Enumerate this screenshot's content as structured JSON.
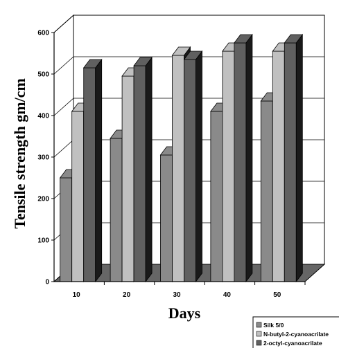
{
  "chart_data": {
    "type": "bar",
    "title": "",
    "xlabel": "Days",
    "ylabel": "Tensile strength gm/cm",
    "categories": [
      "10",
      "20",
      "30",
      "40",
      "50"
    ],
    "ylim": [
      0,
      600
    ],
    "yticks": [
      "0",
      "100",
      "200",
      "300",
      "400",
      "500",
      "600"
    ],
    "series": [
      {
        "name": "Silk 5/0",
        "values": [
          250,
          345,
          305,
          410,
          435
        ]
      },
      {
        "name": "N-butyl-2-cyanoacrilate",
        "values": [
          410,
          495,
          545,
          555,
          555
        ]
      },
      {
        "name": "2-octyl-cyanoacrilate",
        "values": [
          515,
          520,
          535,
          575,
          575
        ]
      }
    ],
    "grid": true,
    "legend": "bottom-right",
    "style": "3d",
    "colors": {
      "series": [
        "#8a8a8a",
        "#c0c0c0",
        "#606060"
      ],
      "floor": "#666666",
      "bar_side": "#1a1a1a"
    }
  }
}
